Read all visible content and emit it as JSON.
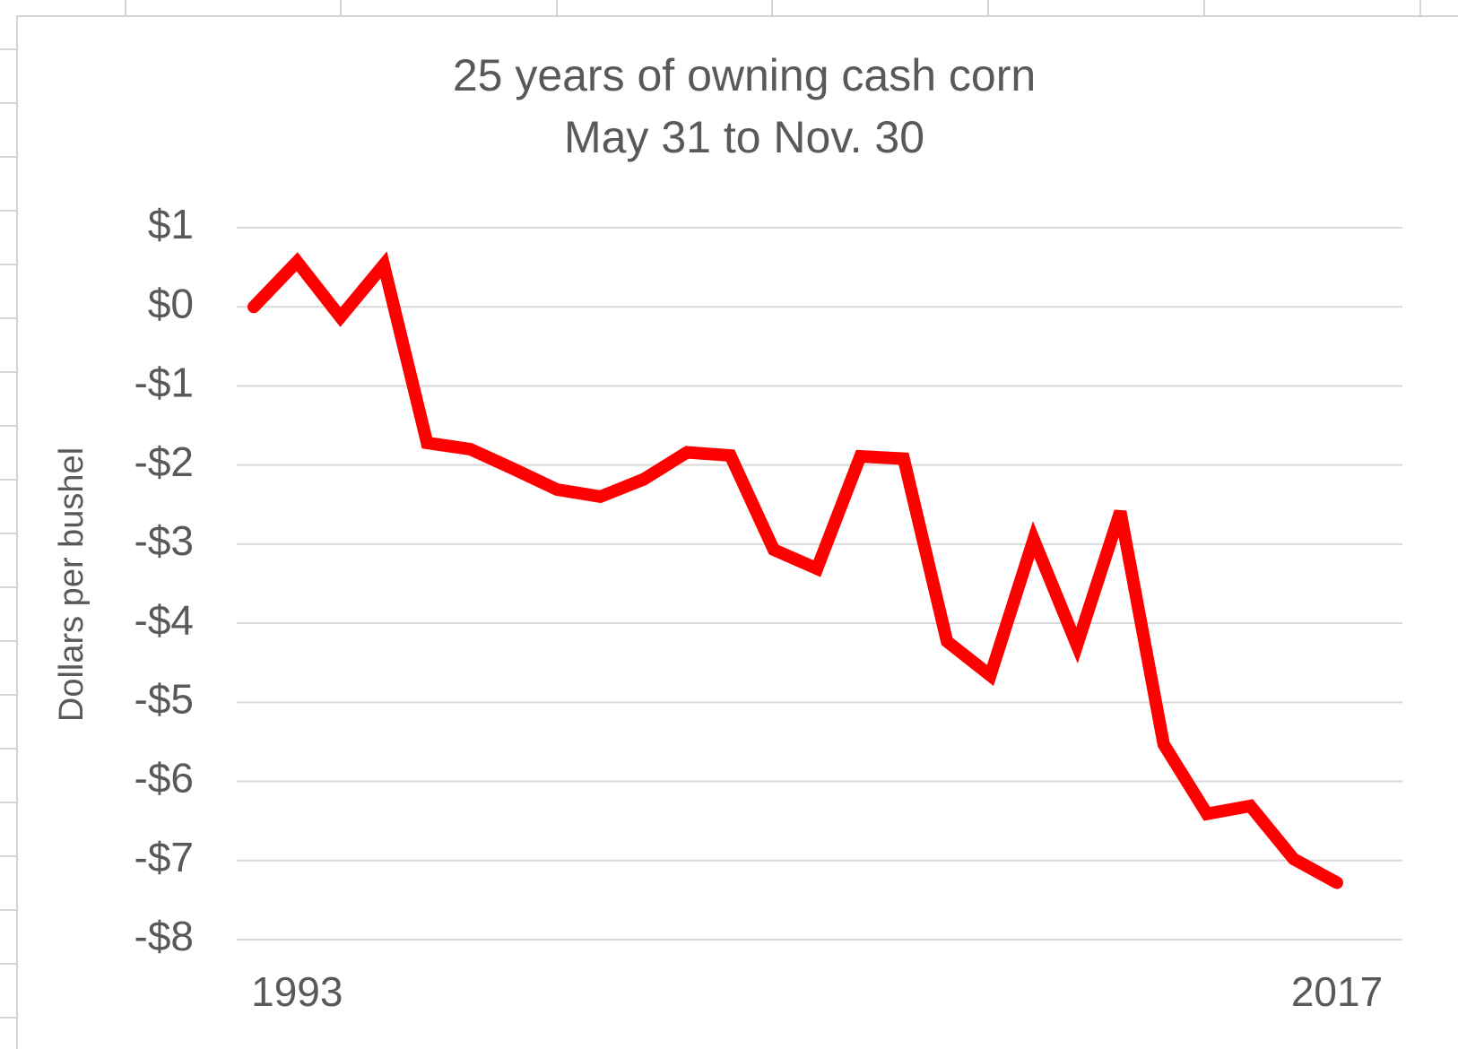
{
  "chart_data": {
    "type": "line",
    "title": "25 years of owning cash corn",
    "subtitle": "May 31 to Nov. 30",
    "y_label": "Dollars per bushel",
    "categories": [
      null,
      "1993",
      null,
      null,
      null,
      null,
      null,
      null,
      null,
      null,
      null,
      null,
      null,
      null,
      null,
      null,
      null,
      null,
      null,
      null,
      null,
      null,
      null,
      null,
      null,
      "2017"
    ],
    "series": [
      {
        "name": "Cash corn",
        "color": "#ff0000",
        "values": [
          0,
          0.57,
          -0.13,
          0.53,
          -1.72,
          -1.8,
          -2.05,
          -2.31,
          -2.4,
          -2.18,
          -1.84,
          -1.88,
          -3.07,
          -3.31,
          -1.89,
          -1.92,
          -4.23,
          -4.66,
          -2.94,
          -4.28,
          -2.59,
          -5.53,
          -6.41,
          -6.31,
          -6.98,
          -7.28
        ]
      }
    ],
    "ylim": [
      -8,
      1
    ],
    "yticks": [
      {
        "value": 1,
        "label": "$1"
      },
      {
        "value": 0,
        "label": "$0"
      },
      {
        "value": -1,
        "label": "-$1"
      },
      {
        "value": -2,
        "label": "-$2"
      },
      {
        "value": -3,
        "label": "-$3"
      },
      {
        "value": -4,
        "label": "-$4"
      },
      {
        "value": -5,
        "label": "-$5"
      },
      {
        "value": -6,
        "label": "-$6"
      },
      {
        "value": -7,
        "label": "-$7"
      },
      {
        "value": -8,
        "label": "-$8"
      }
    ],
    "grid": true
  }
}
